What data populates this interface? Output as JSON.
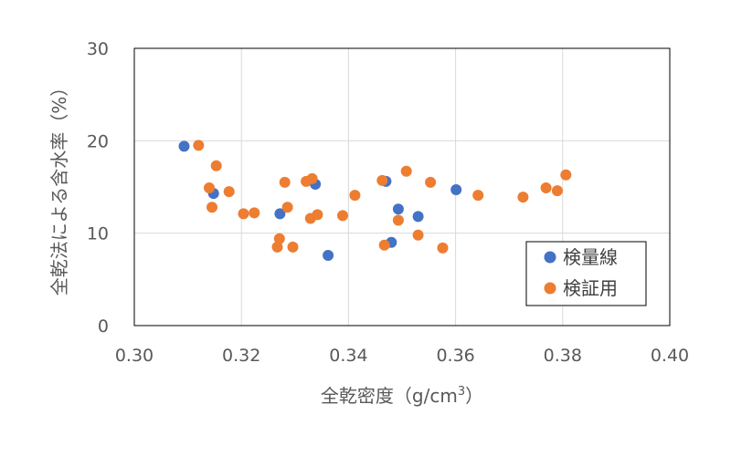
{
  "chart_data": {
    "type": "scatter",
    "title": "",
    "xlabel": "全乾密度（g/cm",
    "xlabel_sup": "3",
    "xlabel_end": "）",
    "ylabel": "全乾法による含水率（%）",
    "xlim": [
      0.3,
      0.4
    ],
    "ylim": [
      0,
      30
    ],
    "x_ticks": [
      "0.30",
      "0.32",
      "0.34",
      "0.36",
      "0.38",
      "0.40"
    ],
    "y_ticks": [
      "0",
      "10",
      "20",
      "30"
    ],
    "grid": "vertical and horizontal major gridlines",
    "legend_position": "bottom-right",
    "series": [
      {
        "name": "検量線",
        "color": "#4472C4",
        "points": [
          [
            0.3093,
            19.4
          ],
          [
            0.3148,
            14.3
          ],
          [
            0.3272,
            12.1
          ],
          [
            0.3338,
            15.3
          ],
          [
            0.3362,
            7.6
          ],
          [
            0.347,
            15.6
          ],
          [
            0.348,
            9.0
          ],
          [
            0.3493,
            12.6
          ],
          [
            0.353,
            11.8
          ],
          [
            0.3601,
            14.7
          ]
        ]
      },
      {
        "name": "検証用",
        "color": "#ED7D31",
        "points": [
          [
            0.312,
            19.5
          ],
          [
            0.314,
            14.9
          ],
          [
            0.3145,
            12.8
          ],
          [
            0.3153,
            17.3
          ],
          [
            0.3177,
            14.5
          ],
          [
            0.3204,
            12.1
          ],
          [
            0.3224,
            12.2
          ],
          [
            0.3267,
            8.5
          ],
          [
            0.3271,
            9.4
          ],
          [
            0.3281,
            15.5
          ],
          [
            0.3286,
            12.8
          ],
          [
            0.3296,
            8.5
          ],
          [
            0.3321,
            15.6
          ],
          [
            0.3329,
            11.6
          ],
          [
            0.3332,
            15.9
          ],
          [
            0.3342,
            12.0
          ],
          [
            0.3389,
            11.9
          ],
          [
            0.3412,
            14.1
          ],
          [
            0.3463,
            15.7
          ],
          [
            0.3467,
            8.7
          ],
          [
            0.3493,
            11.4
          ],
          [
            0.3508,
            16.7
          ],
          [
            0.353,
            9.8
          ],
          [
            0.3553,
            15.5
          ],
          [
            0.3576,
            8.4
          ],
          [
            0.3642,
            14.1
          ],
          [
            0.3726,
            13.9
          ],
          [
            0.3769,
            14.9
          ],
          [
            0.379,
            14.6
          ],
          [
            0.3806,
            16.3
          ]
        ]
      }
    ]
  }
}
